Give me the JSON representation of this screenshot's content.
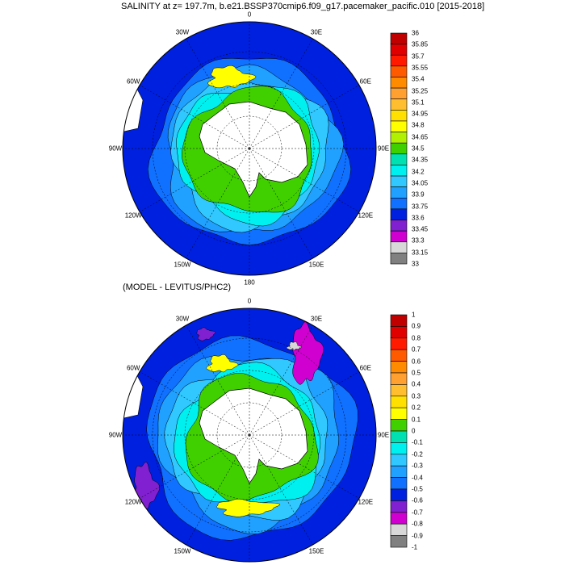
{
  "titles": {
    "top": "SALINITY at z= 197.7m, b.e21.BSSP370cmip6.f09_g17.pacemaker_pacific.010 [2015-2018]",
    "bottom": "(MODEL - LEVITUS/PHC2)"
  },
  "map_labels": [
    "0",
    "30E",
    "60E",
    "90E",
    "120E",
    "150E",
    "180",
    "150W",
    "120W",
    "90W",
    "60W",
    "30W"
  ],
  "colorbar_top": {
    "labels": [
      "36",
      "35.85",
      "35.7",
      "35.55",
      "35.4",
      "35.25",
      "35.1",
      "34.95",
      "34.8",
      "34.65",
      "34.5",
      "34.35",
      "34.2",
      "34.05",
      "33.9",
      "33.75",
      "33.6",
      "33.45",
      "33.3",
      "33.15",
      "33"
    ],
    "colors": [
      "#c00000",
      "#e00000",
      "#ff1a00",
      "#ff5a00",
      "#ff8c00",
      "#ffa030",
      "#ffbe30",
      "#ffe000",
      "#ffff00",
      "#b0f000",
      "#40d000",
      "#00e0b0",
      "#00f0f0",
      "#30c8ff",
      "#20a0ff",
      "#1070ff",
      "#0020e0",
      "#8020d0",
      "#d000d0",
      "#d8d8d8",
      "#808080"
    ]
  },
  "colorbar_bottom": {
    "labels": [
      "1",
      "0.9",
      "0.8",
      "0.7",
      "0.6",
      "0.5",
      "0.4",
      "0.3",
      "0.2",
      "0.1",
      "0",
      "-0.1",
      "-0.2",
      "-0.3",
      "-0.4",
      "-0.5",
      "-0.6",
      "-0.7",
      "-0.8",
      "-0.9",
      "-1"
    ],
    "colors": [
      "#c00000",
      "#e00000",
      "#ff1a00",
      "#ff5a00",
      "#ff8c00",
      "#ffa030",
      "#ffbe30",
      "#ffe000",
      "#ffff00",
      "#40d000",
      "#00e0b0",
      "#00f0f0",
      "#30c8ff",
      "#20a0ff",
      "#1070ff",
      "#0020e0",
      "#8020d0",
      "#d000d0",
      "#d8d8d8",
      "#808080"
    ]
  },
  "palette": {
    "outer": "#0020e0",
    "ring1": "#1070ff",
    "ring2": "#20a0ff",
    "ring3": "#30c8ff",
    "ring4": "#00f0f0",
    "ring5": "#40d000",
    "core_yellow": "#ffff00",
    "purple": "#8020d0",
    "magenta": "#d000d0",
    "gray": "#d8d8d8",
    "land": "#ffffff"
  }
}
